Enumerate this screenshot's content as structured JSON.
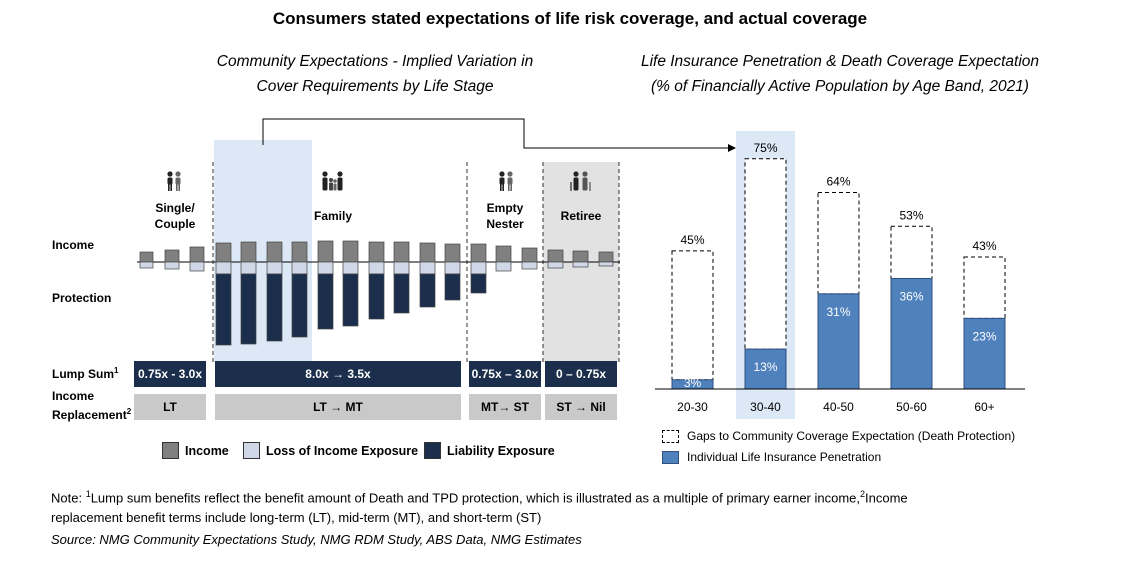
{
  "title": "Consumers stated expectations of life risk coverage, and actual coverage",
  "left_panel": {
    "title_line1": "Community Expectations - Implied Variation in",
    "title_line2": "Cover Requirements by Life Stage",
    "stages": [
      {
        "label_line1": "Single/",
        "label_line2": "Couple",
        "icon": "couple-icon"
      },
      {
        "label_line1": "Family",
        "label_line2": "",
        "icon": "family-icon"
      },
      {
        "label_line1": "Empty",
        "label_line2": "Nester",
        "icon": "couple-icon"
      },
      {
        "label_line1": "Retiree",
        "label_line2": "",
        "icon": "elderly-couple-icon"
      }
    ],
    "row_labels": {
      "income": "Income",
      "protection": "Protection",
      "lump_sum": "Lump Sum",
      "lump_sum_sup": "1",
      "income_replacement_line1": "Income",
      "income_replacement_line2": "Replacement",
      "income_replacement_sup": "2"
    },
    "lump_sum_bands": [
      "0.75x - 3.0x",
      "8.0x → 3.5x",
      "0.75x – 3.0x",
      "0 – 0.75x"
    ],
    "replacement_bands": [
      "LT",
      "LT → MT",
      "MT→ ST",
      "ST → Nil"
    ],
    "legend": [
      {
        "label": "Income",
        "color": "#808080"
      },
      {
        "label": "Loss of Income Exposure",
        "color": "#d0d8e8"
      },
      {
        "label": "Liability Exposure",
        "color": "#1b2e4b"
      }
    ]
  },
  "right_panel": {
    "title_line1": "Life Insurance Penetration & Death Coverage Expectation",
    "title_line2": "(% of Financially Active Population by Age Band, 2021)",
    "legend": [
      {
        "label": "Gaps to Community Coverage Expectation (Death Protection)"
      },
      {
        "label": "Individual Life Insurance Penetration"
      }
    ]
  },
  "chart_data": [
    {
      "type": "bar",
      "stacked": true,
      "categories": [
        "20-30",
        "30-40",
        "40-50",
        "50-60",
        "60+"
      ],
      "series": [
        {
          "name": "Individual Life Insurance Penetration",
          "values": [
            3,
            13,
            31,
            36,
            23
          ],
          "color": "#4f81bd"
        },
        {
          "name": "Gaps to Community Coverage Expectation (Death Protection)",
          "values": [
            42,
            62,
            33,
            17,
            20
          ],
          "style": "dashed-outline"
        }
      ],
      "totals": [
        45,
        75,
        64,
        53,
        43
      ],
      "labels_inner": [
        "3%",
        "13%",
        "31%",
        "36%",
        "23%"
      ],
      "labels_total": [
        "45%",
        "75%",
        "64%",
        "53%",
        "43%"
      ],
      "highlighted_category": "30-40",
      "ylim": [
        0,
        80
      ]
    }
  ],
  "notes": {
    "note_prefix": "Note: ",
    "sup1": "1",
    "note_line1_a": "Lump sum benefits reflect the benefit amount of Death and TPD protection,  which is illustrated as a multiple of primary earner income,",
    "sup2": "2",
    "note_line1_b": "Income",
    "note_line2": "replacement benefit terms include long-term (LT), mid-term (MT), and short-term (ST)",
    "source": "Source: NMG Community Expectations Study, NMG RDM Study, ABS Data, NMG Estimates"
  }
}
